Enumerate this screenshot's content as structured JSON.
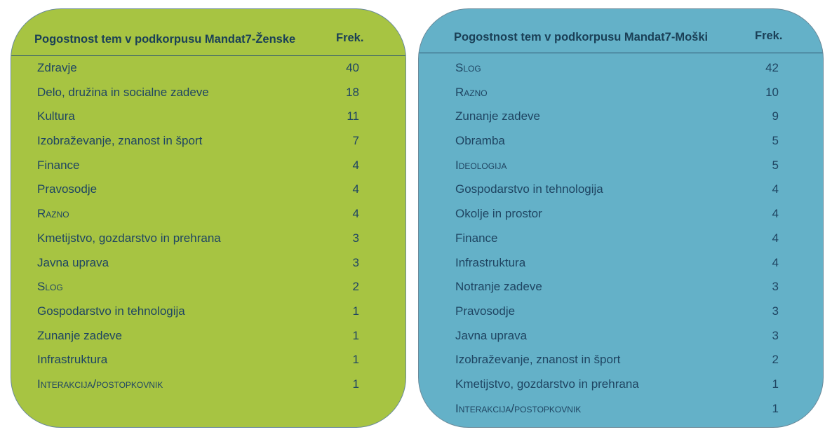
{
  "left_table": {
    "title": "Pogostnost tem v podkorpusu Mandat7-Ženske",
    "freq_header": "Frek.",
    "rows": [
      {
        "label": "Zdravje",
        "freq": "40"
      },
      {
        "label": "Delo, družina in socialne zadeve",
        "freq": "18"
      },
      {
        "label": "Kultura",
        "freq": "11"
      },
      {
        "label": "Izobraževanje, znanost in šport",
        "freq": "7"
      },
      {
        "label": "Finance",
        "freq": "4"
      },
      {
        "label": "Pravosodje",
        "freq": "4"
      },
      {
        "label": "Razno",
        "freq": "4"
      },
      {
        "label": "Kmetijstvo, gozdarstvo in prehrana",
        "freq": "3"
      },
      {
        "label": "Javna uprava",
        "freq": "3"
      },
      {
        "label": "Slog",
        "freq": "2"
      },
      {
        "label": "Gospodarstvo in tehnologija",
        "freq": "1"
      },
      {
        "label": "Zunanje zadeve",
        "freq": "1"
      },
      {
        "label": "Infrastruktura",
        "freq": "1"
      },
      {
        "label": "Interakcija/postopkovnik",
        "freq": "1"
      }
    ]
  },
  "right_table": {
    "title": "Pogostnost tem v podkorpusu Mandat7-Moški",
    "freq_header": "Frek.",
    "rows": [
      {
        "label": "Slog",
        "freq": "42"
      },
      {
        "label": "Razno",
        "freq": "10"
      },
      {
        "label": "Zunanje zadeve",
        "freq": "9"
      },
      {
        "label": "Obramba",
        "freq": "5"
      },
      {
        "label": "Ideologija",
        "freq": "5"
      },
      {
        "label": "Gospodarstvo in tehnologija",
        "freq": "4"
      },
      {
        "label": "Okolje in prostor",
        "freq": "4"
      },
      {
        "label": "Finance",
        "freq": "4"
      },
      {
        "label": "Infrastruktura",
        "freq": "4"
      },
      {
        "label": "Notranje zadeve",
        "freq": "3"
      },
      {
        "label": "Pravosodje",
        "freq": "3"
      },
      {
        "label": "Javna uprava",
        "freq": "3"
      },
      {
        "label": "Izobraževanje, znanost in šport",
        "freq": "2"
      },
      {
        "label": "Kmetijstvo, gozdarstvo in prehrana",
        "freq": "1"
      },
      {
        "label": "Interakcija/postopkovnik",
        "freq": "1"
      }
    ]
  },
  "colors": {
    "left_panel": "#a7c442",
    "right_panel": "#64b1c8",
    "text": "#1f4562"
  }
}
